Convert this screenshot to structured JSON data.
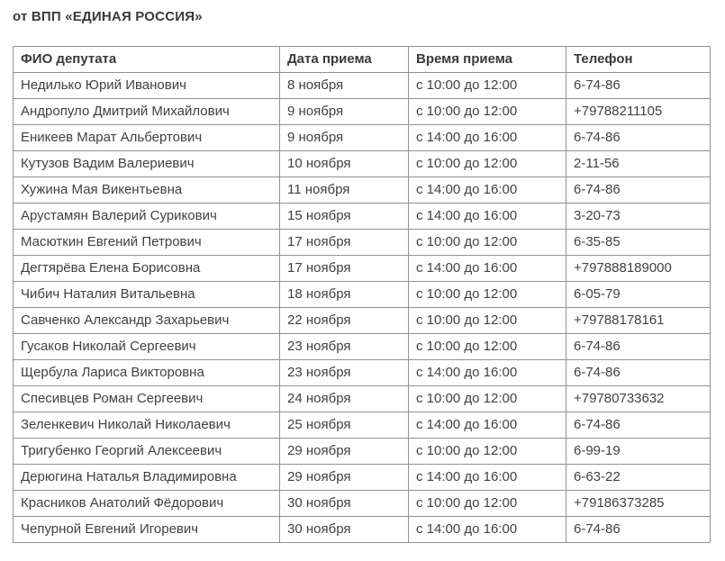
{
  "page": {
    "title": "от ВПП «ЕДИНАЯ РОССИЯ»"
  },
  "table": {
    "headers": {
      "name": "ФИО депутата",
      "date": "Дата приема",
      "time": "Время приема",
      "phone": "Телефон"
    },
    "rows": [
      {
        "name": "Недилько Юрий Иванович",
        "date": "8 ноября",
        "time": "с 10:00 до 12:00",
        "phone": "6-74-86"
      },
      {
        "name": "Андропуло Дмитрий Михайлович",
        "date": "9 ноября",
        "time": "с 10:00 до 12:00",
        "phone": "+79788211105"
      },
      {
        "name": "Еникеев Марат Альбертович",
        "date": "9 ноября",
        "time": "с 14:00 до 16:00",
        "phone": "6-74-86"
      },
      {
        "name": "Кутузов Вадим Валериевич",
        "date": "10 ноября",
        "time": "с 10:00 до 12:00",
        "phone": "2-11-56"
      },
      {
        "name": "Хужина Мая Викентьевна",
        "date": "11 ноября",
        "time": "с 14:00 до 16:00",
        "phone": "6-74-86"
      },
      {
        "name": "Арустамян Валерий Сурикович",
        "date": "15 ноября",
        "time": "с 14:00 до 16:00",
        "phone": "3-20-73"
      },
      {
        "name": "Масюткин Евгений Петрович",
        "date": "17 ноября",
        "time": "с 10:00 до 12:00",
        "phone": "6-35-85"
      },
      {
        "name": "Дегтярёва Елена Борисовна",
        "date": "17 ноября",
        "time": "с 14:00 до 16:00",
        "phone": "+797888189000"
      },
      {
        "name": "Чибич Наталия Витальевна",
        "date": "18 ноября",
        "time": "с 10:00 до 12:00",
        "phone": "6-05-79"
      },
      {
        "name": "Савченко Александр Захарьевич",
        "date": "22 ноября",
        "time": "с 10:00 до 12:00",
        "phone": "+79788178161"
      },
      {
        "name": "Гусаков Николай Сергеевич",
        "date": "23 ноября",
        "time": "с 10:00 до 12:00",
        "phone": "6-74-86"
      },
      {
        "name": "Щербула Лариса Викторовна",
        "date": "23 ноября",
        "time": "с 14:00 до 16:00",
        "phone": "6-74-86"
      },
      {
        "name": "Спесивцев Роман Сергеевич",
        "date": "24 ноября",
        "time": "с 10:00 до 12:00",
        "phone": "+79780733632"
      },
      {
        "name": "Зеленкевич Николай Николаевич",
        "date": "25 ноября",
        "time": "с 14:00 до 16:00",
        "phone": "6-74-86"
      },
      {
        "name": "Тригубенко Георгий Алексеевич",
        "date": "29 ноября",
        "time": "с 10:00 до 12:00",
        "phone": "6-99-19"
      },
      {
        "name": "Дерюгина Наталья Владимировна",
        "date": "29 ноября",
        "time": "с 14:00 до 16:00",
        "phone": "6-63-22"
      },
      {
        "name": "Красников Анатолий Фёдорович",
        "date": "30 ноября",
        "time": "с 10:00 до 12:00",
        "phone": "+79186373285"
      },
      {
        "name": "Чепурной Евгений Игоревич",
        "date": "30 ноября",
        "time": "с 14:00 до 16:00",
        "phone": "6-74-86"
      }
    ]
  },
  "colors": {
    "text": "#414141",
    "border": "#919191",
    "background": "#ffffff"
  }
}
